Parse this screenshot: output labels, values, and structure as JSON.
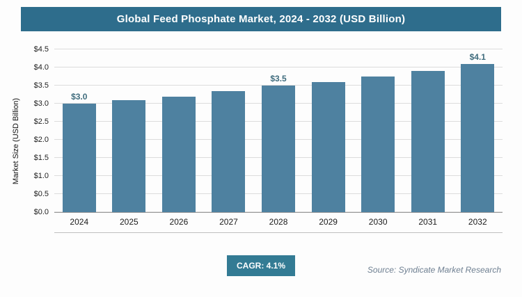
{
  "header": {
    "title": "Global Feed Phosphate Market, 2024 - 2032 (USD Billion)"
  },
  "chart_data": {
    "type": "bar",
    "title": "Global Feed Phosphate Market, 2024 - 2032 (USD Billion)",
    "categories": [
      "2024",
      "2025",
      "2026",
      "2027",
      "2028",
      "2029",
      "2030",
      "2031",
      "2032"
    ],
    "values": [
      3.0,
      3.1,
      3.2,
      3.35,
      3.5,
      3.6,
      3.75,
      3.9,
      4.1
    ],
    "data_labels": [
      "$3.0",
      "",
      "",
      "",
      "$3.5",
      "",
      "",
      "",
      "$4.1"
    ],
    "xlabel": "",
    "ylabel": "Market Size (USD Billion)",
    "ylim": [
      0,
      4.5
    ],
    "ytick_step": 0.5,
    "yticks": [
      "$0.0",
      "$0.5",
      "$1.0",
      "$1.5",
      "$2.0",
      "$2.5",
      "$3.0",
      "$3.5",
      "$4.0",
      "$4.5"
    ],
    "grid": true,
    "legend": "none"
  },
  "footer": {
    "cagr_label": "CAGR: 4.1%",
    "source": "Source: Syndicate Market Research"
  },
  "colors": {
    "header_bg": "#2e6d8c",
    "badge_bg": "#337b94",
    "bar_color": "#4e81a0",
    "data_label_color": "#3f6c7d",
    "gridline_color": "#dcdcdc"
  }
}
